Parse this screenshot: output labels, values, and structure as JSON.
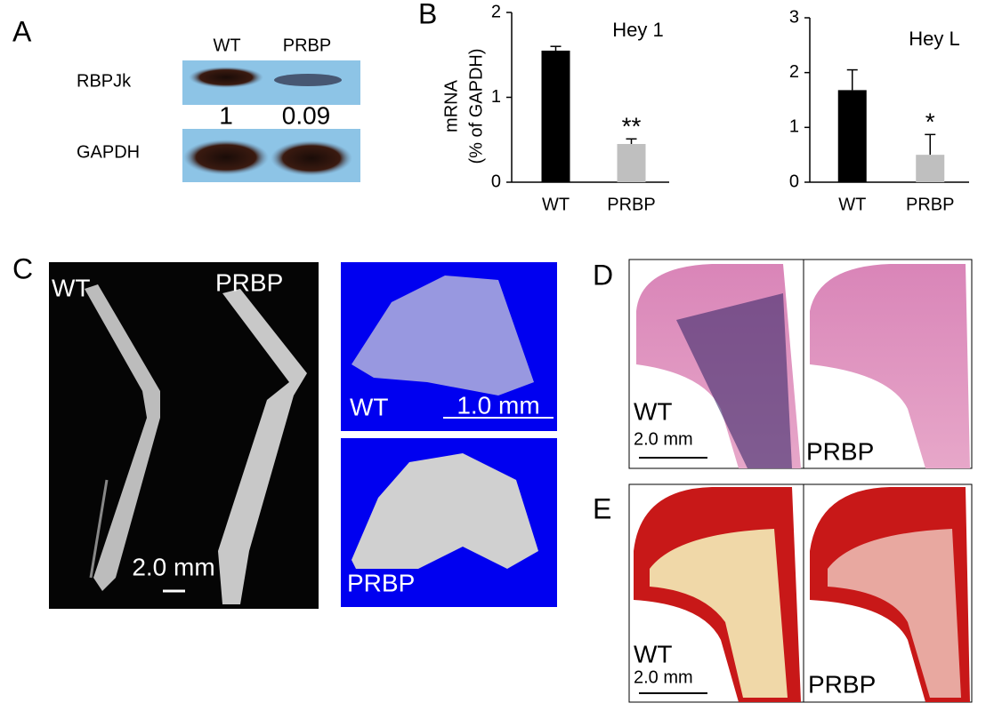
{
  "panels": {
    "a": {
      "label": "A",
      "lanes": [
        "WT",
        "PRBP"
      ],
      "blots": [
        "RBPJk",
        "GAPDH"
      ],
      "quantification": [
        1,
        0.09
      ]
    },
    "b": {
      "label": "B"
    },
    "c": {
      "label": "C",
      "xray": {
        "left": "WT",
        "right": "PRBP",
        "scale": "2.0 mm"
      },
      "microct": {
        "top": "WT",
        "top_scale": "1.0 mm",
        "bottom": "PRBP"
      }
    },
    "d": {
      "label": "D",
      "left": "WT",
      "scale": "2.0 mm",
      "right": "PRBP"
    },
    "e": {
      "label": "E",
      "left": "WT",
      "scale": "2.0 mm",
      "right": "PRBP"
    }
  },
  "chart_data": [
    {
      "type": "bar",
      "title": "Hey 1",
      "y_label": [
        "mRNA",
        "(% of GAPDH)"
      ],
      "categories": [
        "WT",
        "PRBP"
      ],
      "values": [
        1.55,
        0.45
      ],
      "errors": [
        0.05,
        0.06
      ],
      "annotations": [
        null,
        "**"
      ],
      "colors": [
        "#000000",
        "#bfbfbf"
      ],
      "ylim": [
        0,
        2
      ],
      "yticks": [
        0,
        1,
        2
      ]
    },
    {
      "type": "bar",
      "title": "Hey L",
      "categories": [
        "WT",
        "PRBP"
      ],
      "values": [
        1.68,
        0.5
      ],
      "errors": [
        0.37,
        0.37
      ],
      "annotations": [
        null,
        "*"
      ],
      "colors": [
        "#000000",
        "#bfbfbf"
      ],
      "ylim": [
        0,
        3
      ],
      "yticks": [
        0,
        1,
        2,
        3
      ]
    }
  ]
}
